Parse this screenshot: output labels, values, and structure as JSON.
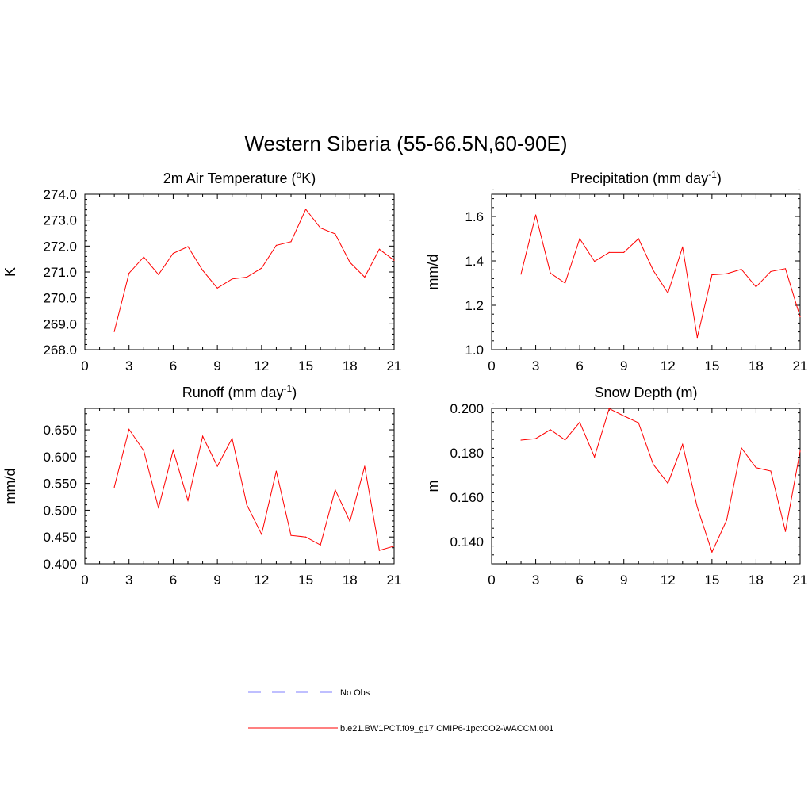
{
  "main_title": "Western Siberia (55-66.5N,60-90E)",
  "legend": {
    "entries": [
      {
        "label": "No Obs",
        "color": "#9999ff",
        "style": "dashed"
      },
      {
        "label": "b.e21.BW1PCT.f09_g17.CMIP6-1pctCO2-WACCM.001",
        "color": "#ff0000",
        "style": "solid"
      }
    ]
  },
  "chart_data": [
    {
      "type": "line",
      "title": "2m Air Temperature (",
      "title_sup": "o",
      "title_tail": "K)",
      "ylabel": "K",
      "xlabel": "",
      "xlim": [
        0,
        21
      ],
      "ylim": [
        268.0,
        274.0
      ],
      "xticks": [
        "0",
        "3",
        "6",
        "9",
        "12",
        "15",
        "18",
        "21"
      ],
      "yticks": [
        "268.0",
        "269.0",
        "270.0",
        "271.0",
        "272.0",
        "273.0",
        "274.0"
      ],
      "grid": false,
      "series": [
        {
          "x": [
            2,
            3,
            4,
            5,
            6,
            7,
            8,
            9,
            10,
            11,
            12,
            13,
            14,
            15,
            16,
            17,
            18,
            19,
            20,
            21
          ],
          "y": [
            268.7,
            270.95,
            271.58,
            270.9,
            271.72,
            271.98,
            271.06,
            270.38,
            270.73,
            270.8,
            271.15,
            272.03,
            272.17,
            273.42,
            272.7,
            272.47,
            271.37,
            270.8,
            271.88,
            271.45
          ],
          "color": "#ff0000"
        }
      ]
    },
    {
      "type": "line",
      "title": "Precipitation (mm day",
      "title_sup": "-1",
      "title_tail": ")",
      "ylabel": "mm/d",
      "xlabel": "",
      "xlim": [
        0,
        21
      ],
      "ylim": [
        1.0,
        1.7
      ],
      "xticks": [
        "0",
        "3",
        "6",
        "9",
        "12",
        "15",
        "18",
        "21"
      ],
      "yticks": [
        "1.0",
        "1.2",
        "1.4",
        "1.6"
      ],
      "grid": false,
      "series": [
        {
          "x": [
            2,
            3,
            4,
            5,
            6,
            7,
            8,
            9,
            10,
            11,
            12,
            13,
            14,
            15,
            16,
            17,
            18,
            19,
            20,
            21
          ],
          "y": [
            1.34,
            1.607,
            1.345,
            1.3,
            1.5,
            1.398,
            1.438,
            1.438,
            1.5,
            1.357,
            1.255,
            1.463,
            1.055,
            1.337,
            1.342,
            1.362,
            1.283,
            1.352,
            1.365,
            1.148
          ],
          "color": "#ff0000"
        }
      ]
    },
    {
      "type": "line",
      "title": "Runoff (mm day",
      "title_sup": "-1",
      "title_tail": ")",
      "ylabel": "mm/d",
      "xlabel": "",
      "xlim": [
        0,
        21
      ],
      "ylim": [
        0.4,
        0.69
      ],
      "xticks": [
        "0",
        "3",
        "6",
        "9",
        "12",
        "15",
        "18",
        "21"
      ],
      "yticks": [
        "0.400",
        "0.450",
        "0.500",
        "0.550",
        "0.600",
        "0.650"
      ],
      "grid": false,
      "series": [
        {
          "x": [
            2,
            3,
            4,
            5,
            6,
            7,
            8,
            9,
            10,
            11,
            12,
            13,
            14,
            15,
            16,
            17,
            18,
            19,
            20,
            21
          ],
          "y": [
            0.543,
            0.651,
            0.611,
            0.504,
            0.612,
            0.518,
            0.638,
            0.582,
            0.634,
            0.51,
            0.455,
            0.573,
            0.453,
            0.45,
            0.435,
            0.538,
            0.479,
            0.582,
            0.425,
            0.433
          ],
          "color": "#ff0000"
        }
      ]
    },
    {
      "type": "line",
      "title": "Snow Depth (m)",
      "title_sup": "",
      "title_tail": "",
      "ylabel": "m",
      "xlabel": "",
      "xlim": [
        0,
        21
      ],
      "ylim": [
        0.13,
        0.2
      ],
      "xticks": [
        "0",
        "3",
        "6",
        "9",
        "12",
        "15",
        "18",
        "21"
      ],
      "yticks": [
        "0.140",
        "0.160",
        "0.180",
        "0.200"
      ],
      "grid": false,
      "series": [
        {
          "x": [
            2,
            3,
            4,
            5,
            6,
            7,
            8,
            9,
            10,
            11,
            12,
            13,
            14,
            15,
            16,
            17,
            18,
            19,
            20,
            21
          ],
          "y": [
            0.1857,
            0.1864,
            0.1904,
            0.1858,
            0.1938,
            0.1781,
            0.1999,
            0.1966,
            0.1935,
            0.1748,
            0.1662,
            0.1838,
            0.1555,
            0.1353,
            0.1497,
            0.1822,
            0.1733,
            0.1718,
            0.1446,
            0.1808
          ],
          "color": "#ff0000"
        }
      ]
    }
  ]
}
